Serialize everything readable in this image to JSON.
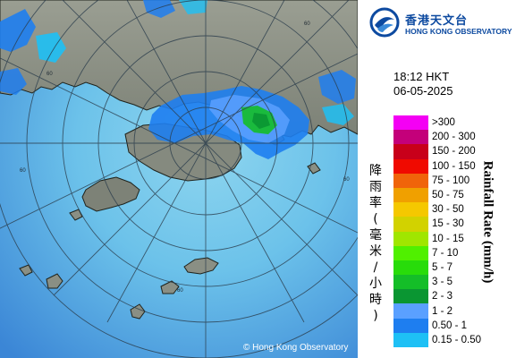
{
  "logo": {
    "name_zh": "香港天文台",
    "name_en": "HONG KONG OBSERVATORY"
  },
  "time": {
    "clock": "18:12 HKT",
    "date": "06-05-2025"
  },
  "map": {
    "ring_labels": [
      "60",
      "60",
      "60",
      "60",
      "60"
    ],
    "copyright": "© Hong Kong Observatory",
    "colors": {
      "sea_center": "#7eceed",
      "sea_edge": "#3f8fd8",
      "land": "#8c9184",
      "coastline": "#1f231c",
      "range_rings": "#2b3d4c"
    }
  },
  "legend": {
    "title_zh": "降雨率 (毫米/小時)",
    "title_en": "Rainfall Rate (mm/h)",
    "items": [
      {
        "label": ">300",
        "color": "#f400f4"
      },
      {
        "label": "200 - 300",
        "color": "#c4007a"
      },
      {
        "label": "150 - 200",
        "color": "#c8001a"
      },
      {
        "label": "100 - 150",
        "color": "#f00a00"
      },
      {
        "label": "75 - 100",
        "color": "#f0640a"
      },
      {
        "label": "50 - 75",
        "color": "#f0a000"
      },
      {
        "label": "30 - 50",
        "color": "#f5c800"
      },
      {
        "label": "15 - 30",
        "color": "#d2d200"
      },
      {
        "label": "10 - 15",
        "color": "#a0e600"
      },
      {
        "label": "7 - 10",
        "color": "#50f000"
      },
      {
        "label": "5 - 7",
        "color": "#28dc0a"
      },
      {
        "label": "3 - 5",
        "color": "#14be28"
      },
      {
        "label": "2 - 3",
        "color": "#0a9632"
      },
      {
        "label": "1 - 2",
        "color": "#5aa0ff"
      },
      {
        "label": "0.50 - 1",
        "color": "#1e7ef0"
      },
      {
        "label": "0.15 - 0.50",
        "color": "#1ec0f5"
      }
    ]
  }
}
